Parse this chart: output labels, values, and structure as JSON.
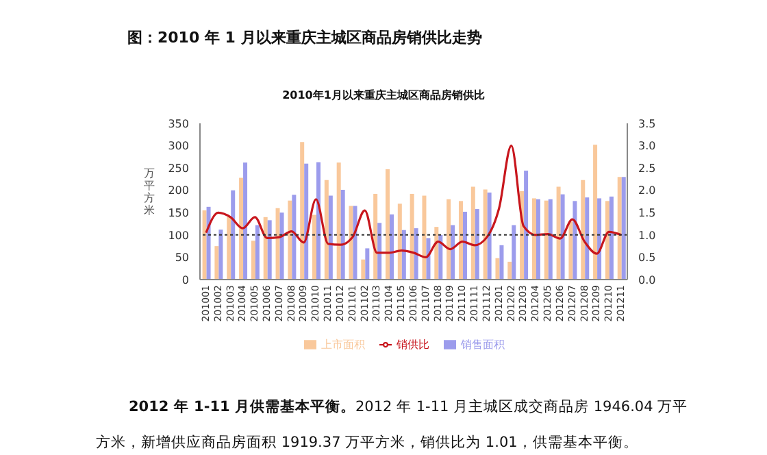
{
  "chart_data": {
    "type": "bar",
    "title": "2010年1月以来重庆主城区商品房销供比",
    "ylabel": "万平方米",
    "annotations": [
      "图：2010 年 1 月以来重庆主城区商品房销供比走势",
      "2012 年 1-11 月供需基本平衡。",
      "2012 年 1-11 月主城区成交商品房 1946.04 万平方米，新增供应商品房面积 1919.37 万平方米，销供比为 1.01，供需基本平衡。"
    ],
    "categories": [
      "201001",
      "201002",
      "201003",
      "201004",
      "201005",
      "201006",
      "201007",
      "201008",
      "201009",
      "201010",
      "201011",
      "201012",
      "201101",
      "201102",
      "201103",
      "201104",
      "201105",
      "201106",
      "201107",
      "201108",
      "201109",
      "201110",
      "201111",
      "201112",
      "201201",
      "201202",
      "201203",
      "201204",
      "201205",
      "201206",
      "201207",
      "201208",
      "201209",
      "201210",
      "201211"
    ],
    "series": [
      {
        "name": "上市面积",
        "color": "#f9c89b",
        "values": [
          155,
          75,
          140,
          228,
          87,
          140,
          160,
          177,
          308,
          145,
          223,
          262,
          165,
          45,
          192,
          247,
          170,
          192,
          188,
          118,
          180,
          176,
          208,
          202,
          48,
          40,
          198,
          182,
          177,
          208,
          130,
          223,
          302,
          176,
          230
        ]
      },
      {
        "name": "销售面积",
        "color": "#9c9cec",
        "values": [
          163,
          112,
          200,
          262,
          122,
          133,
          150,
          190,
          260,
          263,
          188,
          201,
          165,
          70,
          127,
          146,
          111,
          115,
          93,
          100,
          122,
          152,
          158,
          195,
          77,
          122,
          244,
          180,
          180,
          191,
          176,
          184,
          182,
          186,
          230
        ]
      },
      {
        "name": "销供比",
        "type": "line",
        "axis": "y2",
        "color": "#c8161d",
        "values": [
          1.05,
          1.5,
          1.4,
          1.15,
          1.4,
          0.93,
          0.95,
          1.08,
          0.83,
          1.8,
          0.8,
          0.78,
          0.95,
          1.55,
          0.6,
          0.6,
          0.65,
          0.6,
          0.5,
          0.85,
          0.68,
          0.85,
          0.77,
          0.95,
          1.6,
          3.0,
          1.2,
          1.0,
          1.02,
          0.92,
          1.35,
          0.85,
          0.58,
          1.07,
          1.0
        ]
      }
    ],
    "ylim": [
      0,
      350
    ],
    "yticks": [
      0,
      50,
      100,
      150,
      200,
      250,
      300,
      350
    ],
    "y2lim": [
      0,
      3.5
    ],
    "y2ticks": [
      {
        "value": 0,
        "label": "0.0"
      },
      {
        "value": 0.5,
        "label": "0.5"
      },
      {
        "value": 1,
        "label": "1.0"
      },
      {
        "value": 1.5,
        "label": "1.5"
      },
      {
        "value": 2,
        "label": "2.0"
      },
      {
        "value": 2.5,
        "label": "2.5"
      },
      {
        "value": 3,
        "label": "3.0"
      },
      {
        "value": 3.5,
        "label": "3.5"
      }
    ],
    "ref_lines": [
      {
        "axis": "y2",
        "value": 1,
        "color": "#333333",
        "line_style": "dotted"
      }
    ],
    "grid": false,
    "legend": "bottom"
  }
}
